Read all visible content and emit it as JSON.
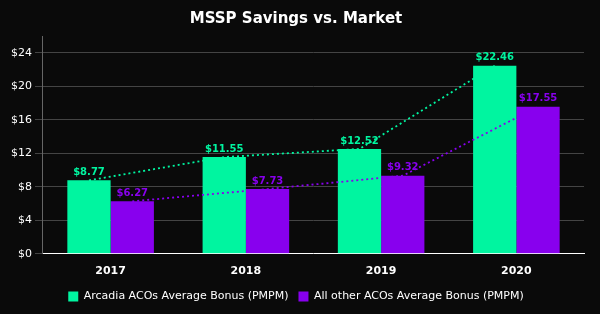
{
  "chart_data": {
    "type": "bar",
    "title": "MSSP Savings vs. Market",
    "categories": [
      "2017",
      "2018",
      "2019",
      "2020"
    ],
    "series": [
      {
        "name": "Arcadia ACOs Average Bonus (PMPM)",
        "color": "#00F5A0",
        "values": [
          8.77,
          11.55,
          12.52,
          22.46
        ],
        "value_labels": [
          "$8.77",
          "$11.55",
          "$12.52",
          "$22.46"
        ],
        "line_style": "dotted"
      },
      {
        "name": "All other ACOs Average Bonus (PMPM)",
        "color": "#8800EE",
        "values": [
          6.27,
          7.73,
          9.32,
          17.55
        ],
        "value_labels": [
          "$6.27",
          "$7.73",
          "$9.32",
          "$17.55"
        ],
        "line_style": "dotted"
      }
    ],
    "ylim": [
      0,
      26
    ],
    "yticks": [
      {
        "value": 0,
        "label": "$0"
      },
      {
        "value": 4,
        "label": "$4"
      },
      {
        "value": 8,
        "label": "$8"
      },
      {
        "value": 12,
        "label": "$12"
      },
      {
        "value": 16,
        "label": "$16"
      },
      {
        "value": 20,
        "label": "$20"
      },
      {
        "value": 24,
        "label": "$24"
      }
    ],
    "grid": true,
    "legend": "bottom",
    "data_labels": true
  }
}
